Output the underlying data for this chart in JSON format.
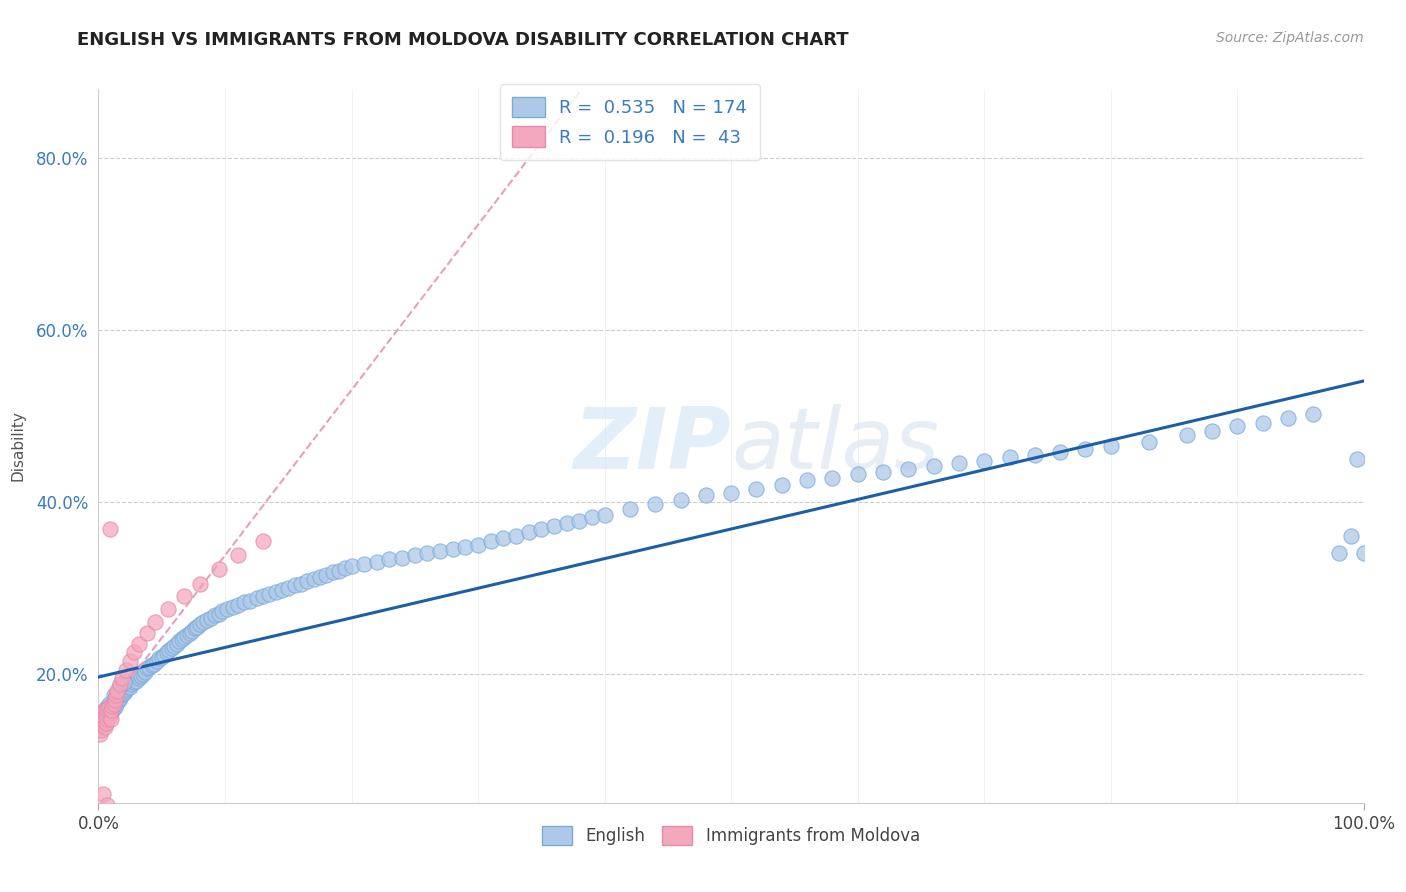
{
  "title": "ENGLISH VS IMMIGRANTS FROM MOLDOVA DISABILITY CORRELATION CHART",
  "source_text": "Source: ZipAtlas.com",
  "ylabel": "Disability",
  "xlim": [
    0.0,
    1.0
  ],
  "ylim": [
    0.05,
    0.88
  ],
  "xtick_labels": [
    "0.0%",
    "100.0%"
  ],
  "ytick_labels": [
    "20.0%",
    "40.0%",
    "60.0%",
    "80.0%"
  ],
  "ytick_positions": [
    0.2,
    0.4,
    0.6,
    0.8
  ],
  "color_english": "#adc8e8",
  "color_moldova": "#f4a8be",
  "color_line_english": "#1a5fa8",
  "color_line_moldova": "#e8a0b8",
  "background_color": "#ffffff",
  "grid_color": "#cccccc",
  "title_color": "#222222",
  "watermark_color": "#d0e4f4",
  "legend_text_color": "#3a7abf",
  "eng_x": [
    0.001,
    0.002,
    0.002,
    0.003,
    0.003,
    0.003,
    0.004,
    0.004,
    0.004,
    0.004,
    0.005,
    0.005,
    0.005,
    0.005,
    0.006,
    0.006,
    0.006,
    0.006,
    0.007,
    0.007,
    0.007,
    0.008,
    0.008,
    0.008,
    0.009,
    0.009,
    0.009,
    0.01,
    0.01,
    0.01,
    0.011,
    0.011,
    0.012,
    0.012,
    0.012,
    0.013,
    0.013,
    0.014,
    0.014,
    0.015,
    0.015,
    0.016,
    0.016,
    0.017,
    0.017,
    0.018,
    0.018,
    0.019,
    0.02,
    0.02,
    0.021,
    0.022,
    0.022,
    0.023,
    0.024,
    0.025,
    0.025,
    0.026,
    0.027,
    0.028,
    0.029,
    0.03,
    0.031,
    0.032,
    0.033,
    0.034,
    0.035,
    0.036,
    0.037,
    0.038,
    0.04,
    0.042,
    0.044,
    0.046,
    0.048,
    0.05,
    0.052,
    0.054,
    0.056,
    0.058,
    0.06,
    0.062,
    0.064,
    0.066,
    0.068,
    0.07,
    0.072,
    0.074,
    0.076,
    0.078,
    0.08,
    0.083,
    0.086,
    0.089,
    0.092,
    0.095,
    0.098,
    0.102,
    0.106,
    0.11,
    0.115,
    0.12,
    0.125,
    0.13,
    0.135,
    0.14,
    0.145,
    0.15,
    0.155,
    0.16,
    0.165,
    0.17,
    0.175,
    0.18,
    0.185,
    0.19,
    0.195,
    0.2,
    0.21,
    0.22,
    0.23,
    0.24,
    0.25,
    0.26,
    0.27,
    0.28,
    0.29,
    0.3,
    0.31,
    0.32,
    0.33,
    0.34,
    0.35,
    0.36,
    0.37,
    0.38,
    0.39,
    0.4,
    0.42,
    0.44,
    0.46,
    0.48,
    0.5,
    0.52,
    0.54,
    0.56,
    0.58,
    0.6,
    0.62,
    0.64,
    0.66,
    0.68,
    0.7,
    0.72,
    0.74,
    0.76,
    0.78,
    0.8,
    0.83,
    0.86,
    0.88,
    0.9,
    0.92,
    0.94,
    0.96,
    0.98,
    0.99,
    0.995,
    1.0,
    0.004,
    0.008,
    0.012,
    0.016,
    0.02
  ],
  "eng_y": [
    0.14,
    0.142,
    0.145,
    0.138,
    0.143,
    0.148,
    0.14,
    0.145,
    0.15,
    0.155,
    0.142,
    0.147,
    0.152,
    0.158,
    0.145,
    0.15,
    0.155,
    0.16,
    0.148,
    0.153,
    0.158,
    0.15,
    0.155,
    0.16,
    0.152,
    0.157,
    0.162,
    0.155,
    0.16,
    0.165,
    0.158,
    0.163,
    0.16,
    0.165,
    0.17,
    0.162,
    0.167,
    0.165,
    0.17,
    0.168,
    0.173,
    0.17,
    0.175,
    0.172,
    0.177,
    0.175,
    0.18,
    0.177,
    0.178,
    0.183,
    0.18,
    0.182,
    0.187,
    0.185,
    0.188,
    0.185,
    0.19,
    0.188,
    0.192,
    0.19,
    0.195,
    0.192,
    0.197,
    0.195,
    0.2,
    0.198,
    0.2,
    0.205,
    0.202,
    0.207,
    0.208,
    0.21,
    0.212,
    0.215,
    0.218,
    0.22,
    0.222,
    0.225,
    0.228,
    0.23,
    0.232,
    0.235,
    0.238,
    0.24,
    0.243,
    0.245,
    0.248,
    0.25,
    0.253,
    0.255,
    0.258,
    0.26,
    0.263,
    0.265,
    0.268,
    0.27,
    0.273,
    0.275,
    0.278,
    0.28,
    0.283,
    0.285,
    0.288,
    0.29,
    0.293,
    0.295,
    0.298,
    0.3,
    0.303,
    0.305,
    0.308,
    0.31,
    0.313,
    0.315,
    0.318,
    0.32,
    0.323,
    0.325,
    0.328,
    0.33,
    0.333,
    0.335,
    0.338,
    0.34,
    0.343,
    0.345,
    0.348,
    0.35,
    0.355,
    0.358,
    0.36,
    0.365,
    0.368,
    0.372,
    0.375,
    0.378,
    0.382,
    0.385,
    0.392,
    0.398,
    0.402,
    0.408,
    0.41,
    0.415,
    0.42,
    0.425,
    0.428,
    0.432,
    0.435,
    0.438,
    0.442,
    0.445,
    0.448,
    0.452,
    0.455,
    0.458,
    0.462,
    0.465,
    0.47,
    0.478,
    0.482,
    0.488,
    0.492,
    0.498,
    0.502,
    0.34,
    0.36,
    0.45,
    0.34,
    0.155,
    0.165,
    0.175,
    0.185,
    0.19
  ],
  "mol_x": [
    0.001,
    0.001,
    0.002,
    0.002,
    0.003,
    0.003,
    0.003,
    0.004,
    0.004,
    0.005,
    0.005,
    0.005,
    0.006,
    0.006,
    0.007,
    0.007,
    0.008,
    0.008,
    0.009,
    0.01,
    0.01,
    0.011,
    0.012,
    0.013,
    0.014,
    0.015,
    0.017,
    0.019,
    0.022,
    0.025,
    0.028,
    0.032,
    0.038,
    0.045,
    0.055,
    0.068,
    0.08,
    0.095,
    0.11,
    0.13,
    0.009,
    0.004,
    0.007
  ],
  "mol_y": [
    0.13,
    0.145,
    0.135,
    0.15,
    0.14,
    0.148,
    0.155,
    0.142,
    0.152,
    0.138,
    0.145,
    0.158,
    0.143,
    0.152,
    0.148,
    0.158,
    0.15,
    0.162,
    0.155,
    0.148,
    0.158,
    0.163,
    0.165,
    0.17,
    0.175,
    0.18,
    0.188,
    0.195,
    0.205,
    0.215,
    0.225,
    0.235,
    0.248,
    0.26,
    0.275,
    0.29,
    0.305,
    0.322,
    0.338,
    0.355,
    0.368,
    0.06,
    0.048
  ]
}
